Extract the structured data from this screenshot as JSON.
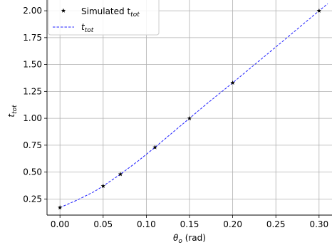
{
  "chart_data": {
    "type": "line",
    "title": "",
    "xlabel_symbol": "θ",
    "xlabel_sub": "o",
    "xlabel_unit": " (rad)",
    "ylabel_symbol": "t",
    "ylabel_sub": "tot",
    "xlim": [
      -0.015,
      0.315
    ],
    "ylim": [
      0.1,
      2.1
    ],
    "xticks": [
      0.0,
      0.05,
      0.1,
      0.15,
      0.2,
      0.25,
      0.3
    ],
    "xtick_labels": [
      "0.00",
      "0.05",
      "0.10",
      "0.15",
      "0.20",
      "0.25",
      "0.30"
    ],
    "yticks": [
      0.25,
      0.5,
      0.75,
      1.0,
      1.25,
      1.5,
      1.75,
      2.0
    ],
    "ytick_labels": [
      "0.25",
      "0.50",
      "0.75",
      "1.00",
      "1.25",
      "1.50",
      "1.75",
      "2.00"
    ],
    "grid": true,
    "legend_position": "top-left",
    "series": [
      {
        "name": "Simulated t",
        "name_sub": "tot",
        "style": "markers",
        "marker": "star",
        "color": "#000000",
        "x": [
          0.0,
          0.05,
          0.07,
          0.11,
          0.15,
          0.2,
          0.3
        ],
        "y": [
          0.17,
          0.37,
          0.48,
          0.73,
          1.0,
          1.33,
          2.0
        ]
      },
      {
        "name": "t",
        "name_sub": "tot",
        "style": "dashed-line",
        "color": "#1f1fff",
        "x": [
          0.0,
          0.02,
          0.04,
          0.05,
          0.07,
          0.09,
          0.11,
          0.13,
          0.15,
          0.17,
          0.2,
          0.23,
          0.26,
          0.28,
          0.3,
          0.31
        ],
        "y": [
          0.17,
          0.24,
          0.32,
          0.37,
          0.48,
          0.6,
          0.73,
          0.865,
          1.0,
          1.135,
          1.33,
          1.53,
          1.73,
          1.865,
          2.0,
          2.065
        ]
      }
    ]
  }
}
